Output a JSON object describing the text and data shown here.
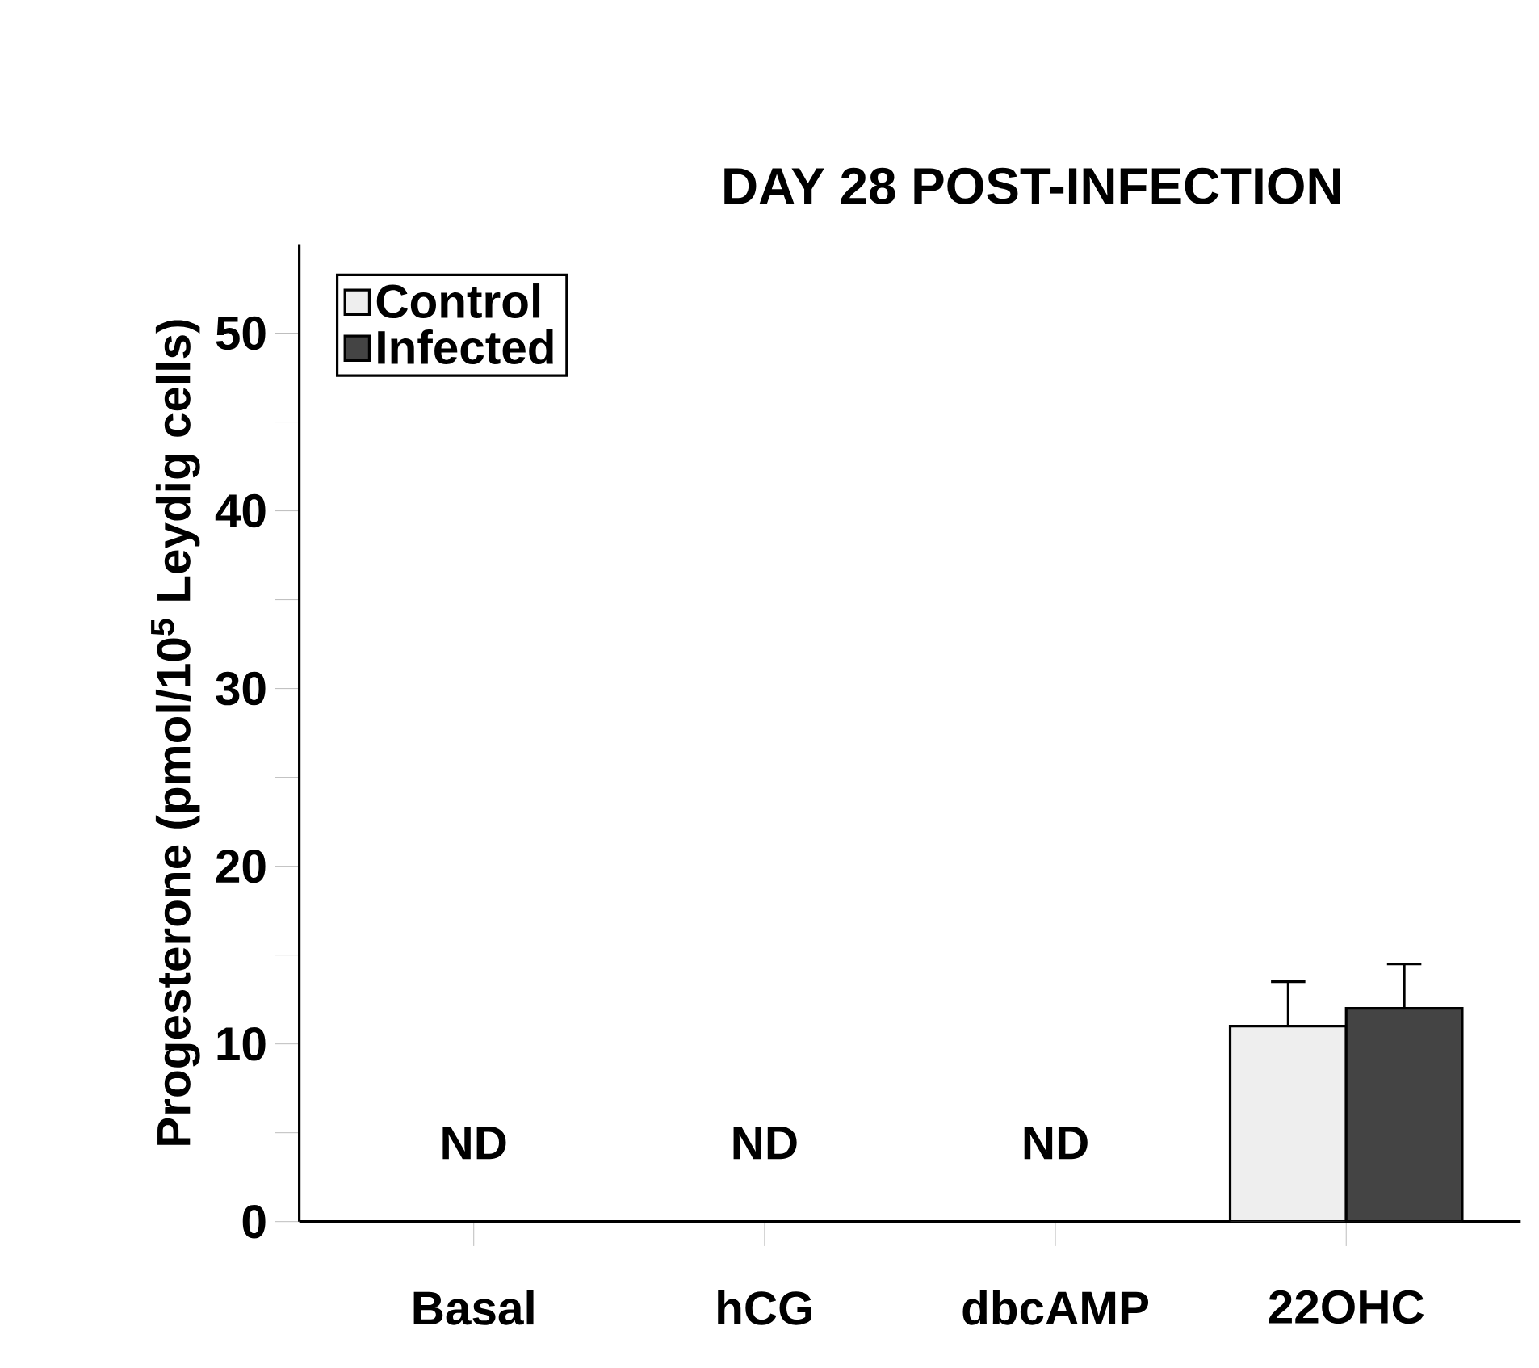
{
  "chart_data": {
    "type": "bar",
    "title": "DAY 28 POST-INFECTION",
    "ylabel": "Progesterone (pmol/10$^{5}$ Leydig cells)",
    "categories": [
      "Basal",
      "hCG",
      "dbcAMP",
      "22OHC"
    ],
    "series": [
      {
        "name": "Control",
        "color": "#eeeeee",
        "values": [
          null,
          null,
          null,
          11
        ],
        "errors": [
          null,
          null,
          null,
          2.5
        ]
      },
      {
        "name": "Infected",
        "color": "#444444",
        "values": [
          null,
          null,
          null,
          12
        ],
        "errors": [
          null,
          null,
          null,
          2.5
        ]
      }
    ],
    "annotations": [
      "ND",
      "ND",
      "ND"
    ],
    "ylim": [
      0,
      55
    ],
    "yticks": [
      0,
      {
        "value": 5,
        "label": null
      },
      10,
      {
        "value": 15,
        "label": null
      },
      20,
      {
        "value": 25,
        "label": null
      },
      30,
      {
        "value": 35,
        "label": null
      },
      40,
      {
        "value": 45,
        "label": null
      },
      50
    ],
    "legend": "top left",
    "grid": false
  }
}
